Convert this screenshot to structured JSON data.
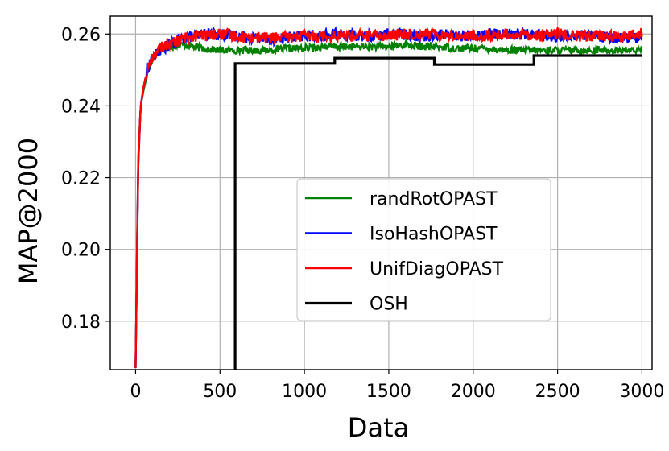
{
  "chart_data": {
    "type": "line",
    "xlabel": "Data",
    "ylabel": "MAP@2000",
    "xlim": [
      -150,
      3060
    ],
    "ylim": [
      0.1665,
      0.265
    ],
    "xticks": [
      0,
      500,
      1000,
      1500,
      2000,
      2500,
      3000
    ],
    "xtick_labels": [
      "0",
      "500",
      "1000",
      "1500",
      "2000",
      "2500",
      "3000"
    ],
    "yticks": [
      0.18,
      0.2,
      0.22,
      0.24,
      0.26
    ],
    "ytick_labels": [
      "0.18",
      "0.20",
      "0.22",
      "0.24",
      "0.26"
    ],
    "grid": true,
    "legend": "center-right",
    "series": [
      {
        "name": "randRotOPAST",
        "color": "#008000",
        "x": [
          0,
          15,
          30,
          50,
          75,
          100,
          130,
          160,
          200,
          250,
          300,
          350,
          400,
          500,
          600,
          700,
          800,
          900,
          1000,
          1100,
          1200,
          1300,
          1400,
          1500,
          1600,
          1700,
          1800,
          1900,
          2000,
          2100,
          2200,
          2300,
          2400,
          2500,
          2600,
          2700,
          2800,
          2900,
          3000
        ],
        "values": [
          0.167,
          0.225,
          0.24,
          0.245,
          0.25,
          0.253,
          0.255,
          0.256,
          0.2565,
          0.257,
          0.257,
          0.2565,
          0.256,
          0.2555,
          0.2555,
          0.2555,
          0.2555,
          0.256,
          0.256,
          0.2565,
          0.2565,
          0.2565,
          0.2565,
          0.2565,
          0.257,
          0.2565,
          0.2565,
          0.256,
          0.256,
          0.256,
          0.2555,
          0.2555,
          0.2555,
          0.2555,
          0.2555,
          0.2555,
          0.2555,
          0.2555,
          0.2555
        ]
      },
      {
        "name": "IsoHashOPAST",
        "color": "#0000ff",
        "x": [
          0,
          15,
          30,
          50,
          75,
          100,
          130,
          160,
          200,
          250,
          300,
          350,
          400,
          500,
          600,
          700,
          800,
          900,
          1000,
          1100,
          1200,
          1300,
          1400,
          1500,
          1600,
          1700,
          1800,
          1900,
          2000,
          2100,
          2200,
          2300,
          2400,
          2500,
          2600,
          2700,
          2800,
          2900,
          3000
        ],
        "values": [
          0.167,
          0.222,
          0.24,
          0.246,
          0.251,
          0.253,
          0.255,
          0.256,
          0.257,
          0.258,
          0.259,
          0.2595,
          0.26,
          0.26,
          0.2595,
          0.259,
          0.2585,
          0.259,
          0.2595,
          0.2595,
          0.26,
          0.2595,
          0.2595,
          0.26,
          0.26,
          0.2595,
          0.26,
          0.2595,
          0.2595,
          0.26,
          0.26,
          0.26,
          0.2595,
          0.2595,
          0.2595,
          0.2595,
          0.259,
          0.259,
          0.259
        ]
      },
      {
        "name": "UnifDiagOPAST",
        "color": "#ff0000",
        "x": [
          0,
          15,
          30,
          50,
          75,
          100,
          130,
          160,
          200,
          250,
          300,
          350,
          400,
          500,
          600,
          700,
          800,
          900,
          1000,
          1100,
          1200,
          1300,
          1400,
          1500,
          1600,
          1700,
          1800,
          1900,
          2000,
          2100,
          2200,
          2300,
          2400,
          2500,
          2600,
          2700,
          2800,
          2900,
          3000
        ],
        "values": [
          0.167,
          0.223,
          0.24,
          0.246,
          0.251,
          0.2535,
          0.2555,
          0.2565,
          0.2575,
          0.258,
          0.259,
          0.2595,
          0.2595,
          0.26,
          0.2595,
          0.259,
          0.259,
          0.259,
          0.2595,
          0.2595,
          0.2595,
          0.2595,
          0.2595,
          0.2595,
          0.26,
          0.26,
          0.26,
          0.2595,
          0.2595,
          0.2595,
          0.26,
          0.26,
          0.2595,
          0.26,
          0.2595,
          0.2595,
          0.2595,
          0.259,
          0.2605
        ]
      },
      {
        "name": "OSH",
        "color": "#000000",
        "step": true,
        "x": [
          590,
          590,
          1180,
          1180,
          1770,
          1770,
          2360,
          2360,
          3000
        ],
        "values": [
          0.1665,
          0.2518,
          0.2518,
          0.2533,
          0.2533,
          0.2515,
          0.2515,
          0.254,
          0.254
        ]
      }
    ]
  }
}
